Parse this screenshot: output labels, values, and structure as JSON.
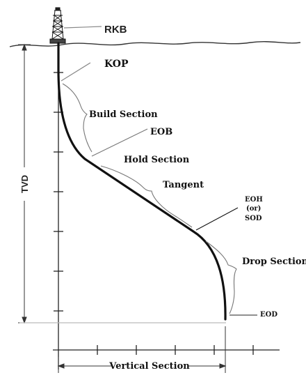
{
  "diagram": {
    "labels": {
      "rkb": "RKB",
      "kop": "KOP",
      "build_section": "Build Section",
      "eob": "EOB",
      "hold_section": "Hold Section",
      "tangent": "Tangent",
      "eoh": "EOH",
      "eoh_or": "(or)",
      "sod": "SOD",
      "drop_section": "Drop Section",
      "eod": "EOD",
      "tvd": "TVD",
      "vertical_section": "Vertical Section"
    },
    "colors": {
      "well_path": "#111111",
      "axis": "#222222",
      "leader": "#777777",
      "ground": "#333333"
    },
    "icons": [
      "drilling-rig-icon"
    ]
  }
}
